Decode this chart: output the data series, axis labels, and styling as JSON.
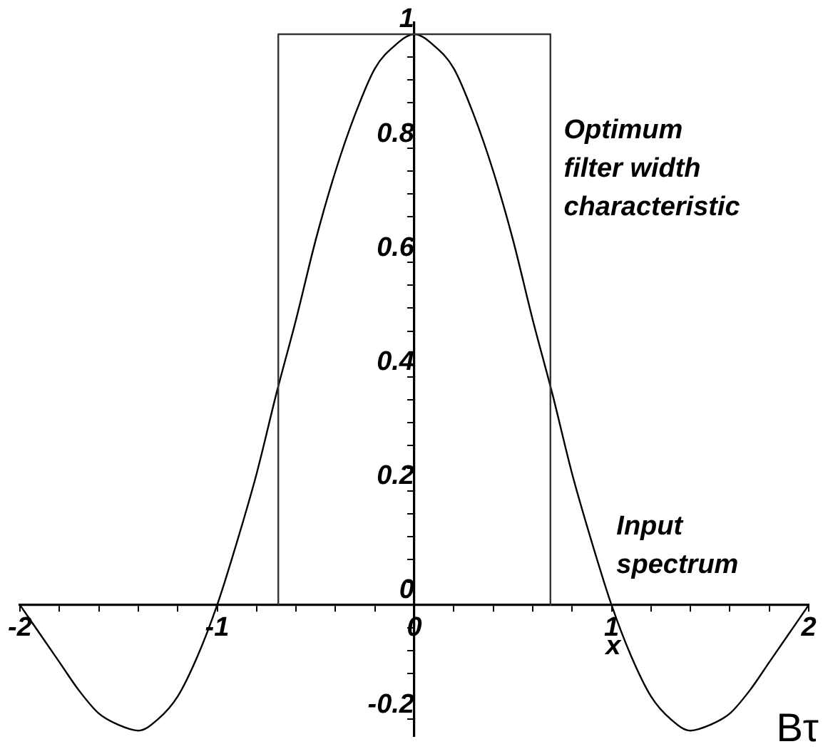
{
  "chart_data": {
    "type": "line",
    "xlabel": "Bτ",
    "annotations": [
      "x"
    ],
    "marker": "none",
    "xlim": [
      -2,
      2
    ],
    "ylim": [
      -0.23,
      1.02
    ],
    "xticks": [
      -2,
      {
        "value": -1.8,
        "label": null
      },
      {
        "value": -1.6,
        "label": null
      },
      {
        "value": -1.4,
        "label": null
      },
      {
        "value": -1.2,
        "label": null
      },
      -1,
      {
        "value": -0.8,
        "label": null
      },
      {
        "value": -0.6,
        "label": null
      },
      {
        "value": -0.4,
        "label": null
      },
      {
        "value": -0.2,
        "label": null
      },
      0,
      {
        "value": 0.2,
        "label": null
      },
      {
        "value": 0.4,
        "label": null
      },
      {
        "value": 0.6,
        "label": null
      },
      {
        "value": 0.8,
        "label": null
      },
      1,
      {
        "value": 1.2,
        "label": null
      },
      {
        "value": 1.4,
        "label": null
      },
      {
        "value": 1.6,
        "label": null
      },
      {
        "value": 1.8,
        "label": null
      },
      2
    ],
    "yticks": [
      -0.2,
      {
        "value": -0.16,
        "label": null
      },
      {
        "value": -0.12,
        "label": null
      },
      {
        "value": -0.08,
        "label": null
      },
      {
        "value": -0.04,
        "label": null
      },
      0,
      {
        "value": 0.04,
        "label": null
      },
      {
        "value": 0.08,
        "label": null
      },
      {
        "value": 0.12,
        "label": null
      },
      {
        "value": 0.16,
        "label": null
      },
      0.2,
      {
        "value": 0.24,
        "label": null
      },
      {
        "value": 0.28,
        "label": null
      },
      {
        "value": 0.32,
        "label": null
      },
      {
        "value": 0.36,
        "label": null
      },
      0.4,
      {
        "value": 0.44,
        "label": null
      },
      {
        "value": 0.48,
        "label": null
      },
      {
        "value": 0.52,
        "label": null
      },
      {
        "value": 0.56,
        "label": null
      },
      0.6,
      {
        "value": 0.64,
        "label": null
      },
      {
        "value": 0.68,
        "label": null
      },
      {
        "value": 0.72,
        "label": null
      },
      {
        "value": 0.76,
        "label": null
      },
      0.8,
      {
        "value": 0.84,
        "label": null
      },
      {
        "value": 0.88,
        "label": null
      },
      {
        "value": 0.92,
        "label": null
      },
      {
        "value": 0.96,
        "label": null
      },
      1
    ],
    "series": [
      {
        "name": "Optimum filter width characteristic",
        "color": "#333333",
        "x": [
          -0.69,
          -0.69,
          0.69,
          0.69
        ],
        "values": [
          0,
          1,
          1,
          0
        ]
      },
      {
        "name": "Input spectrum",
        "color": "#000000",
        "x": [
          -2,
          -1.9,
          -1.8,
          -1.7,
          -1.6,
          -1.5,
          -1.4,
          -1.3,
          -1.2,
          -1.1,
          -1,
          -0.9,
          -0.8,
          -0.7,
          -0.6,
          -0.5,
          -0.4,
          -0.3,
          -0.2,
          -0.1,
          0,
          0.1,
          0.2,
          0.3,
          0.4,
          0.5,
          0.6,
          0.7,
          0.8,
          0.9,
          1,
          1.1,
          1.2,
          1.3,
          1.4,
          1.5,
          1.6,
          1.7,
          1.8,
          1.9,
          2
        ],
        "values": [
          0,
          -0.05,
          -0.1,
          -0.15,
          -0.19,
          -0.21,
          -0.22,
          -0.2,
          -0.16,
          -0.09,
          0,
          0.11,
          0.23,
          0.37,
          0.5,
          0.64,
          0.76,
          0.86,
          0.94,
          0.98,
          1,
          0.98,
          0.94,
          0.86,
          0.76,
          0.64,
          0.5,
          0.37,
          0.23,
          0.11,
          0,
          -0.09,
          -0.16,
          -0.2,
          -0.22,
          -0.21,
          -0.19,
          -0.15,
          -0.1,
          -0.05,
          0
        ]
      }
    ]
  }
}
